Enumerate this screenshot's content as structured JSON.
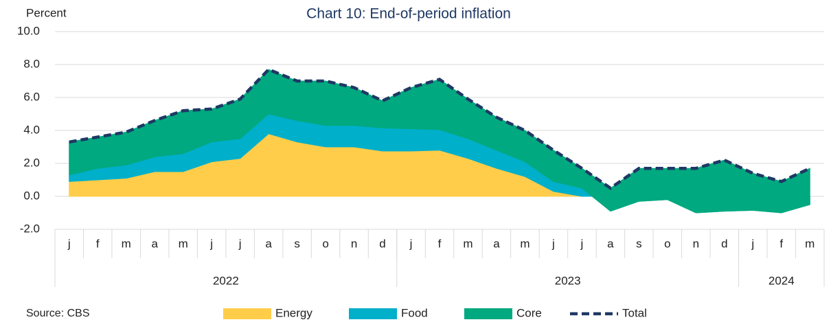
{
  "chart_data": {
    "type": "stacked_area",
    "title": "Chart 10: End-of-period inflation",
    "y_label": "Percent",
    "source": "Source: CBS",
    "categories": [
      "j",
      "f",
      "m",
      "a",
      "m",
      "j",
      "j",
      "a",
      "s",
      "o",
      "n",
      "d",
      "j",
      "f",
      "m",
      "a",
      "m",
      "j",
      "j",
      "a",
      "s",
      "o",
      "n",
      "d",
      "j",
      "f",
      "m"
    ],
    "x_groups": [
      {
        "label": "2022",
        "span": 12
      },
      {
        "label": "2023",
        "span": 12
      },
      {
        "label": "2024",
        "span": 3
      }
    ],
    "series": [
      {
        "name": "Energy",
        "color": "#ffcd4a",
        "values": [
          0.9,
          1.0,
          1.1,
          1.5,
          1.5,
          2.1,
          2.3,
          3.8,
          3.3,
          3.0,
          3.0,
          2.75,
          2.75,
          2.8,
          2.3,
          1.7,
          1.2,
          0.3,
          0.0,
          0,
          0,
          0,
          0,
          0,
          0,
          0,
          0
        ]
      },
      {
        "name": "Food",
        "color": "#00afca",
        "values": [
          0.4,
          0.7,
          0.8,
          0.9,
          1.1,
          1.2,
          1.2,
          1.2,
          1.3,
          1.3,
          1.3,
          1.4,
          1.35,
          1.25,
          1.2,
          1.1,
          0.9,
          0.6,
          0.5,
          -0.9,
          -0.3,
          -0.2,
          -1.0,
          -0.9,
          -0.85,
          -1.0,
          -0.5
        ]
      },
      {
        "name": "Core",
        "color": "#00a97f",
        "values": [
          2.0,
          1.9,
          2.0,
          2.2,
          2.6,
          2.0,
          2.4,
          2.7,
          2.4,
          2.7,
          2.3,
          1.65,
          2.5,
          3.05,
          2.4,
          2.0,
          1.9,
          1.9,
          1.2,
          1.4,
          2.0,
          1.9,
          2.7,
          3.1,
          2.25,
          1.9,
          2.2
        ]
      },
      {
        "name": "Total",
        "color": "#1f3864",
        "line": true,
        "values": [
          3.3,
          3.6,
          3.9,
          4.6,
          5.2,
          5.3,
          5.9,
          7.7,
          7.0,
          7.0,
          6.6,
          5.8,
          6.6,
          7.1,
          5.9,
          4.8,
          4.0,
          2.8,
          1.7,
          0.5,
          1.7,
          1.7,
          1.7,
          2.2,
          1.4,
          0.9,
          1.7
        ]
      }
    ],
    "ylim": [
      -2,
      10
    ],
    "yticks": [
      {
        "value": -2,
        "label": "-2.0"
      },
      {
        "value": 0,
        "label": "0.0"
      },
      {
        "value": 2,
        "label": "2.0"
      },
      {
        "value": 4,
        "label": "4.0"
      },
      {
        "value": 6,
        "label": "6.0"
      },
      {
        "value": 8,
        "label": "8.0"
      },
      {
        "value": 10,
        "label": "10.0"
      }
    ],
    "grid": true
  }
}
